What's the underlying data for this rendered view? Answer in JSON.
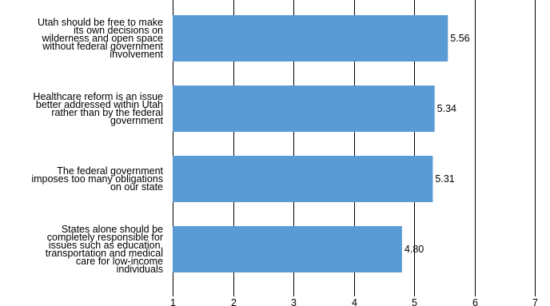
{
  "chart_data": {
    "type": "bar",
    "orientation": "horizontal",
    "categories": [
      "Utah should be free to make its own decisions on wilderness and open space without federal government involvement",
      "Healthcare reform is an issue better addressed within Utah rather than by the federal government",
      "The federal government imposes too many obligations on our state",
      "States alone should be completely responsible for issues such as education, transportation and medical care for low-income individuals"
    ],
    "category_lines": [
      [
        "Utah should be free to make",
        "its own decisions on",
        "wilderness and open space",
        "without federal government",
        "involvement"
      ],
      [
        "Healthcare reform is an issue",
        "better addressed within Utah",
        "rather than by the federal",
        "government"
      ],
      [
        "The federal government",
        "imposes too many obligations",
        "on our state"
      ],
      [
        "States alone should be",
        "completely responsible for",
        "issues such as education,",
        "transportation and medical",
        "care for low-income",
        "individuals"
      ]
    ],
    "values": [
      5.56,
      5.34,
      5.31,
      4.8
    ],
    "value_labels": [
      "5.56",
      "5.34",
      "5.31",
      "4.80"
    ],
    "xlim": [
      1,
      7
    ],
    "xticks": [
      1,
      2,
      3,
      4,
      5,
      6,
      7
    ],
    "title": "",
    "xlabel": "",
    "ylabel": "",
    "grid": "vertical",
    "legend": "none",
    "bar_color": "#5b9bd5",
    "grid_color": "#000000"
  }
}
